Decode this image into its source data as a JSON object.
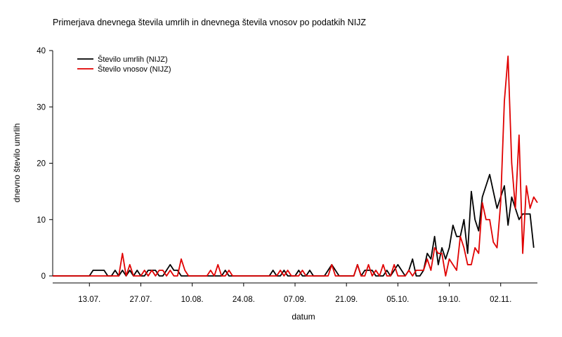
{
  "chart_data": {
    "type": "line",
    "title": "Primerjava dnevnega števila umrlih in dnevnega števila vnosov po podatkih NIJZ",
    "xlabel": "datum",
    "ylabel": "dnevno število umrlih",
    "x_start": "2020-07-03",
    "x_end": "2020-11-12",
    "ylim": [
      0,
      40
    ],
    "y_ticks": [
      0,
      10,
      20,
      30,
      40
    ],
    "x_ticks": [
      {
        "date": "2020-07-13",
        "label": "13.07."
      },
      {
        "date": "2020-07-27",
        "label": "27.07."
      },
      {
        "date": "2020-08-10",
        "label": "10.08."
      },
      {
        "date": "2020-08-24",
        "label": "24.08."
      },
      {
        "date": "2020-09-07",
        "label": "07.09."
      },
      {
        "date": "2020-09-21",
        "label": "21.09."
      },
      {
        "date": "2020-10-05",
        "label": "05.10."
      },
      {
        "date": "2020-10-19",
        "label": "19.10."
      },
      {
        "date": "2020-11-02",
        "label": "02.11."
      }
    ],
    "grid": false,
    "legend_position": "top-left",
    "series": [
      {
        "name": "Število umrlih (NIJZ)",
        "color": "#000000",
        "values": [
          0,
          0,
          0,
          0,
          0,
          0,
          0,
          0,
          0,
          0,
          0,
          1,
          1,
          1,
          1,
          0,
          0,
          1,
          0,
          1,
          0,
          1,
          0,
          1,
          0,
          0,
          1,
          1,
          1,
          0,
          0,
          1,
          2,
          1,
          1,
          0,
          0,
          0,
          0,
          0,
          0,
          0,
          0,
          0,
          0,
          0,
          0,
          1,
          0,
          0,
          0,
          0,
          0,
          0,
          0,
          0,
          0,
          0,
          0,
          0,
          1,
          0,
          0,
          1,
          0,
          0,
          0,
          1,
          0,
          0,
          1,
          0,
          0,
          0,
          0,
          1,
          2,
          1,
          0,
          0,
          0,
          0,
          0,
          2,
          0,
          1,
          1,
          1,
          0,
          0,
          0,
          1,
          0,
          1,
          2,
          1,
          0,
          1,
          3,
          0,
          0,
          1,
          4,
          3,
          7,
          2,
          5,
          3,
          5,
          9,
          7,
          7,
          10,
          4,
          15,
          10,
          8,
          14,
          16,
          18,
          15,
          12,
          14,
          16,
          9,
          14,
          12,
          10,
          11,
          11,
          11,
          5
        ]
      },
      {
        "name": "Število vnosov (NIJZ)",
        "color": "#e00000",
        "values": [
          0,
          0,
          0,
          0,
          0,
          0,
          0,
          0,
          0,
          0,
          0,
          0,
          0,
          0,
          0,
          0,
          0,
          0,
          0,
          4,
          0,
          2,
          0,
          0,
          0,
          1,
          0,
          1,
          0,
          1,
          1,
          0,
          1,
          0,
          0,
          3,
          1,
          0,
          0,
          0,
          0,
          0,
          0,
          1,
          0,
          2,
          0,
          0,
          1,
          0,
          0,
          0,
          0,
          0,
          0,
          0,
          0,
          0,
          0,
          0,
          0,
          0,
          1,
          0,
          1,
          0,
          0,
          0,
          1,
          0,
          0,
          0,
          0,
          0,
          0,
          0,
          2,
          0,
          0,
          0,
          0,
          0,
          0,
          2,
          0,
          0,
          2,
          0,
          1,
          0,
          2,
          0,
          0,
          2,
          0,
          0,
          0,
          1,
          0,
          1,
          1,
          1,
          3,
          1,
          5,
          4,
          4,
          0,
          3,
          2,
          1,
          7,
          5,
          2,
          2,
          5,
          4,
          13,
          10,
          10,
          6,
          5,
          13,
          31,
          39,
          20,
          12,
          25,
          4,
          16,
          12,
          14,
          13
        ]
      }
    ]
  }
}
